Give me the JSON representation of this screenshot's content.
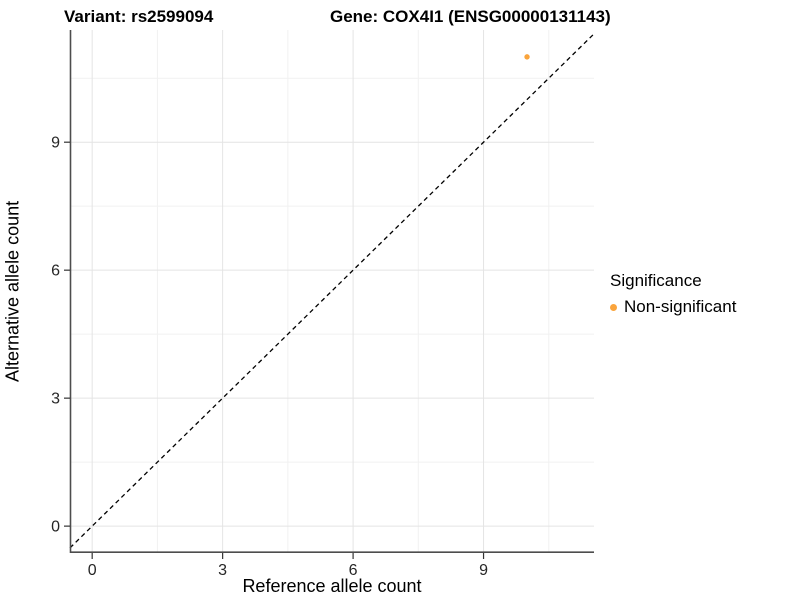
{
  "title": {
    "variant": "Variant: rs2599094",
    "gene": "Gene: COX4I1 (ENSG00000131143)"
  },
  "axes": {
    "x": {
      "label": "Reference allele count",
      "tick_labels": [
        "0",
        "3",
        "6",
        "9"
      ]
    },
    "y": {
      "label": "Alternative allele count",
      "tick_labels": [
        "0",
        "3",
        "6",
        "9"
      ]
    }
  },
  "legend": {
    "title": "Significance",
    "items": [
      {
        "label": "Non-significant",
        "color": "#FAA43C"
      }
    ]
  },
  "colors": {
    "point": "#FAA43C",
    "axis_line": "#4d4d4d",
    "tick_mark": "#333333",
    "tick_text": "#262626",
    "grid_major": "#e4e4e4",
    "grid_minor": "#f1f1f1",
    "identity_line": "#000000",
    "background": "#ffffff"
  },
  "chart_data": {
    "type": "scatter",
    "title": "Variant: rs2599094    Gene: COX4I1 (ENSG00000131143)",
    "xlabel": "Reference allele count",
    "ylabel": "Alternative allele count",
    "xlim": [
      -0.51,
      11.54
    ],
    "ylim": [
      -0.63,
      11.63
    ],
    "x_major_ticks": [
      0,
      3,
      6,
      9
    ],
    "y_major_ticks": [
      0,
      3,
      6,
      9
    ],
    "x_minor_ticks": [
      1.5,
      4.5,
      7.5,
      10.5
    ],
    "y_minor_ticks": [
      1.5,
      4.5,
      7.5,
      10.5
    ],
    "grid": true,
    "legend_position": "right",
    "series": [
      {
        "name": "Non-significant",
        "color": "#FAA43C",
        "points": [
          {
            "x": 10,
            "y": 11
          }
        ]
      }
    ],
    "reference_line": {
      "equation": "y = x",
      "style": "dashed",
      "color": "#000000"
    }
  }
}
